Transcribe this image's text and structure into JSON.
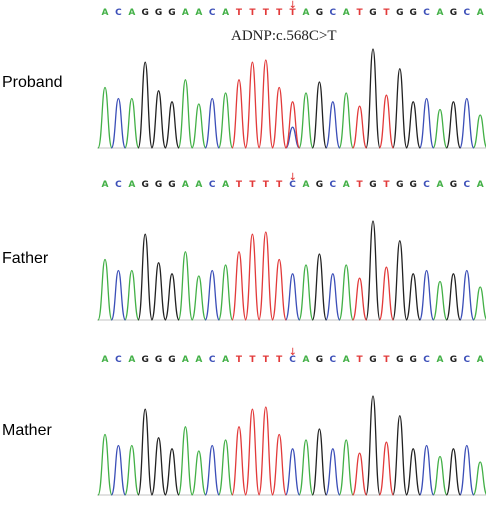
{
  "sequence": [
    "A",
    "C",
    "A",
    "G",
    "G",
    "G",
    "A",
    "A",
    "C",
    "A",
    "T",
    "T",
    "T",
    "T",
    "C",
    "A",
    "G",
    "C",
    "A",
    "T",
    "G",
    "T",
    "G",
    "G",
    "C",
    "A",
    "G",
    "C",
    "A"
  ],
  "base_colors": {
    "A": "#43b047",
    "C": "#3c4fb8",
    "G": "#222222",
    "T": "#e23a3a"
  },
  "variant_position": 14,
  "arrow_glyph": "↓",
  "mutation_label": "ADNP:c.568C>T",
  "panels": [
    {
      "label": "Proband",
      "variant_base": "T",
      "heterozygous": true
    },
    {
      "label": "Father",
      "variant_base": "C",
      "heterozygous": false
    },
    {
      "label": "Mather",
      "variant_base": "C",
      "heterozygous": false
    }
  ]
}
